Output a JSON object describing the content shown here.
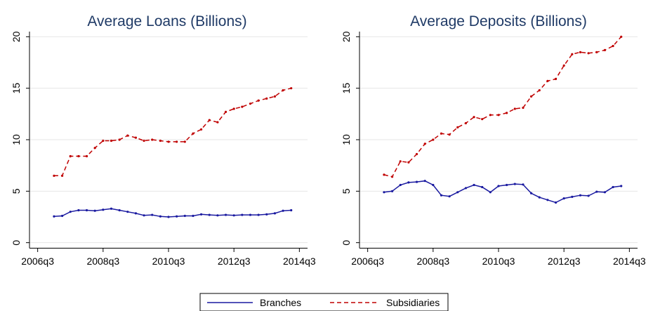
{
  "legend": {
    "items": [
      {
        "label": "Branches",
        "color": "#1a1aa0",
        "dash": "solid"
      },
      {
        "label": "Subsidiaries",
        "color": "#c00000",
        "dash": "dashed"
      }
    ]
  },
  "chart_data": [
    {
      "type": "line",
      "title": "Average Loans (Billions)",
      "xlabel": "",
      "ylabel": "",
      "x_tick_labels": [
        "2006q3",
        "2008q3",
        "2010q3",
        "2012q3",
        "2014q3"
      ],
      "y_ticks": [
        0,
        5,
        10,
        15,
        20
      ],
      "ylim": [
        -0.5,
        20.5
      ],
      "xlim": [
        "2006q2",
        "2014q4"
      ],
      "grid": true,
      "x": [
        "2007q1",
        "2007q2",
        "2007q3",
        "2007q4",
        "2008q1",
        "2008q2",
        "2008q3",
        "2008q4",
        "2009q1",
        "2009q2",
        "2009q3",
        "2009q4",
        "2010q1",
        "2010q2",
        "2010q3",
        "2010q4",
        "2011q1",
        "2011q2",
        "2011q3",
        "2011q4",
        "2012q1",
        "2012q2",
        "2012q3",
        "2012q4",
        "2013q1",
        "2013q2",
        "2013q3",
        "2013q4",
        "2014q1",
        "2014q2"
      ],
      "series": [
        {
          "name": "Branches",
          "values": [
            2.55,
            2.6,
            3.0,
            3.15,
            3.15,
            3.1,
            3.2,
            3.3,
            3.15,
            3.0,
            2.85,
            2.65,
            2.7,
            2.55,
            2.5,
            2.55,
            2.6,
            2.6,
            2.75,
            2.7,
            2.65,
            2.7,
            2.65,
            2.7,
            2.7,
            2.7,
            2.75,
            2.85,
            3.1,
            3.15
          ]
        },
        {
          "name": "Subsidiaries",
          "values": [
            6.5,
            6.5,
            8.4,
            8.4,
            8.4,
            9.2,
            9.9,
            9.9,
            10.0,
            10.4,
            10.2,
            9.9,
            10.0,
            9.9,
            9.8,
            9.8,
            9.8,
            10.6,
            11.0,
            11.9,
            11.7,
            12.7,
            13.0,
            13.2,
            13.5,
            13.8,
            14.0,
            14.2,
            14.8,
            15.0
          ]
        }
      ]
    },
    {
      "type": "line",
      "title": "Average Deposits (Billions)",
      "xlabel": "",
      "ylabel": "",
      "x_tick_labels": [
        "2006q3",
        "2008q3",
        "2010q3",
        "2012q3",
        "2014q3"
      ],
      "y_ticks": [
        0,
        5,
        10,
        15,
        20
      ],
      "ylim": [
        -0.5,
        20.5
      ],
      "xlim": [
        "2006q2",
        "2014q4"
      ],
      "grid": true,
      "x": [
        "2007q1",
        "2007q2",
        "2007q3",
        "2007q4",
        "2008q1",
        "2008q2",
        "2008q3",
        "2008q4",
        "2009q1",
        "2009q2",
        "2009q3",
        "2009q4",
        "2010q1",
        "2010q2",
        "2010q3",
        "2010q4",
        "2011q1",
        "2011q2",
        "2011q3",
        "2011q4",
        "2012q1",
        "2012q2",
        "2012q3",
        "2012q4",
        "2013q1",
        "2013q2",
        "2013q3",
        "2013q4",
        "2014q1",
        "2014q2"
      ],
      "series": [
        {
          "name": "Branches",
          "values": [
            4.9,
            5.0,
            5.6,
            5.85,
            5.9,
            6.0,
            5.6,
            4.6,
            4.5,
            4.9,
            5.3,
            5.6,
            5.4,
            4.9,
            5.5,
            5.6,
            5.7,
            5.65,
            4.8,
            4.4,
            4.15,
            3.9,
            4.3,
            4.45,
            4.6,
            4.55,
            4.95,
            4.9,
            5.4,
            5.5
          ]
        },
        {
          "name": "Subsidiaries",
          "values": [
            6.6,
            6.4,
            7.9,
            7.8,
            8.6,
            9.6,
            10.0,
            10.6,
            10.5,
            11.2,
            11.6,
            12.2,
            12.0,
            12.4,
            12.4,
            12.6,
            13.0,
            13.1,
            14.2,
            14.8,
            15.7,
            15.9,
            17.2,
            18.3,
            18.5,
            18.4,
            18.5,
            18.7,
            19.1,
            20.0
          ]
        }
      ]
    }
  ]
}
